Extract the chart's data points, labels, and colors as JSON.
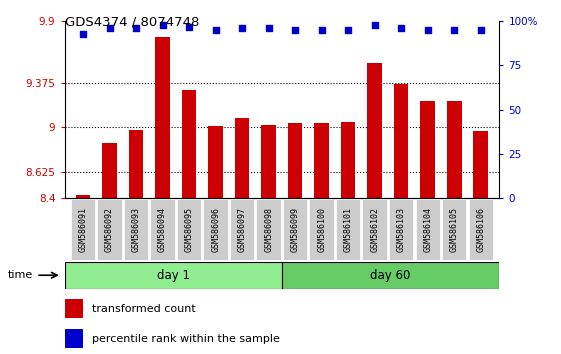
{
  "title": "GDS4374 / 8074748",
  "samples": [
    "GSM586091",
    "GSM586092",
    "GSM586093",
    "GSM586094",
    "GSM586095",
    "GSM586096",
    "GSM586097",
    "GSM586098",
    "GSM586099",
    "GSM586100",
    "GSM586101",
    "GSM586102",
    "GSM586103",
    "GSM586104",
    "GSM586105",
    "GSM586106"
  ],
  "red_values": [
    8.43,
    8.87,
    8.98,
    9.77,
    9.32,
    9.01,
    9.08,
    9.02,
    9.04,
    9.04,
    9.05,
    9.55,
    9.37,
    9.22,
    9.22,
    8.97
  ],
  "blue_values": [
    93,
    96,
    96,
    98,
    97,
    95,
    96,
    96,
    95,
    95,
    95,
    98,
    96,
    95,
    95,
    95
  ],
  "ylim_left": [
    8.4,
    9.9
  ],
  "ylim_right": [
    0,
    100
  ],
  "yticks_left": [
    8.4,
    8.625,
    9,
    9.375,
    9.9
  ],
  "ytick_labels_left": [
    "8.4",
    "8.625",
    "9",
    "9.375",
    "9.9"
  ],
  "yticks_right": [
    0,
    25,
    50,
    75,
    100
  ],
  "ytick_labels_right": [
    "0",
    "25",
    "50",
    "75",
    "100%"
  ],
  "hlines": [
    8.625,
    9,
    9.375
  ],
  "day1_count": 8,
  "day1_label": "day 1",
  "day60_label": "day 60",
  "time_label": "time",
  "legend_red": "transformed count",
  "legend_blue": "percentile rank within the sample",
  "bar_color": "#cc0000",
  "blue_color": "#0000cc",
  "green_light": "#90ee90",
  "green_medium": "#66cc66",
  "tick_bg": "#cccccc"
}
